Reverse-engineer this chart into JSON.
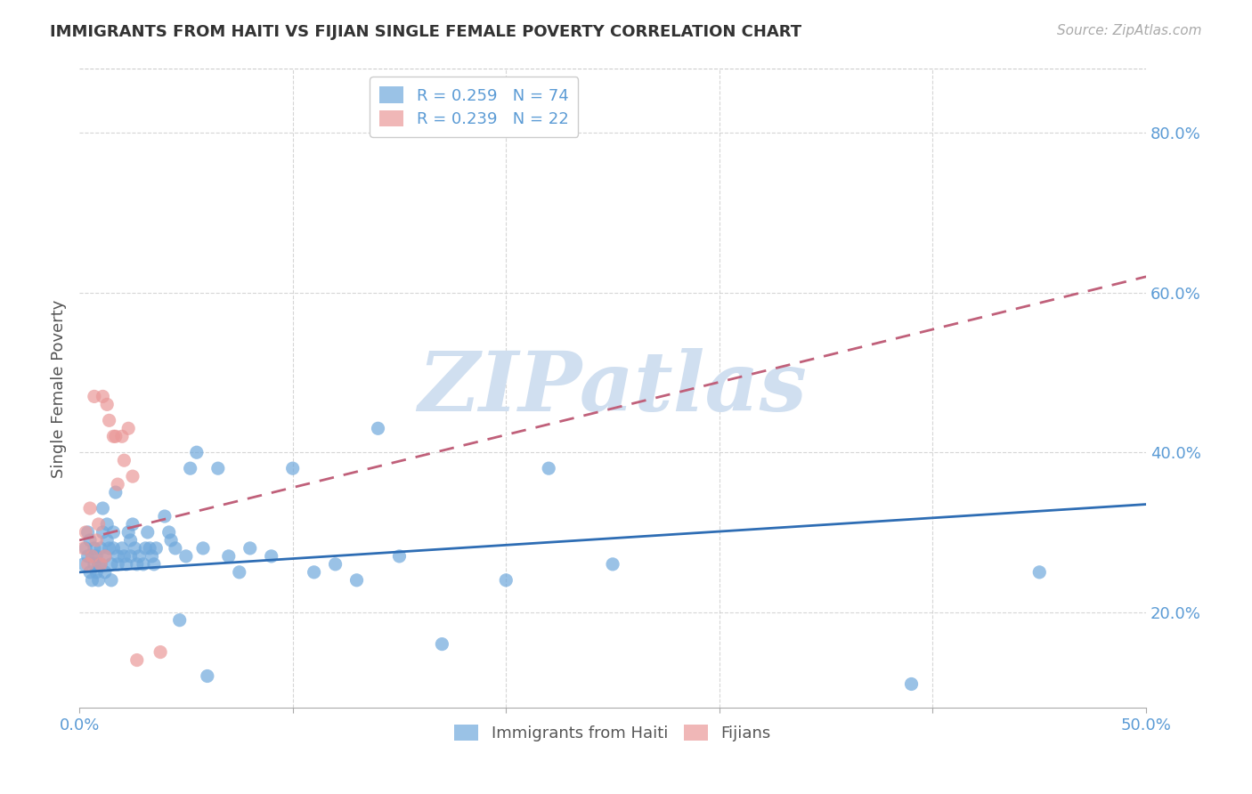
{
  "title": "IMMIGRANTS FROM HAITI VS FIJIAN SINGLE FEMALE POVERTY CORRELATION CHART",
  "source": "Source: ZipAtlas.com",
  "ylabel": "Single Female Poverty",
  "yticks": [
    20.0,
    40.0,
    60.0,
    80.0
  ],
  "xlim": [
    0.0,
    0.5
  ],
  "ylim": [
    0.08,
    0.88
  ],
  "watermark": "ZIPatlas",
  "haiti_R": "0.259",
  "haiti_N": "74",
  "fijian_R": "0.239",
  "fijian_N": "22",
  "haiti_color": "#6fa8dc",
  "fijian_color": "#ea9999",
  "haiti_x": [
    0.002,
    0.003,
    0.004,
    0.004,
    0.005,
    0.005,
    0.006,
    0.006,
    0.007,
    0.007,
    0.008,
    0.008,
    0.009,
    0.009,
    0.01,
    0.01,
    0.011,
    0.011,
    0.012,
    0.012,
    0.013,
    0.013,
    0.014,
    0.015,
    0.015,
    0.016,
    0.016,
    0.017,
    0.018,
    0.018,
    0.02,
    0.021,
    0.022,
    0.023,
    0.024,
    0.024,
    0.025,
    0.026,
    0.027,
    0.028,
    0.03,
    0.031,
    0.032,
    0.033,
    0.034,
    0.035,
    0.036,
    0.04,
    0.042,
    0.043,
    0.045,
    0.047,
    0.05,
    0.052,
    0.055,
    0.058,
    0.06,
    0.065,
    0.07,
    0.075,
    0.08,
    0.09,
    0.1,
    0.11,
    0.12,
    0.13,
    0.14,
    0.15,
    0.17,
    0.2,
    0.22,
    0.25,
    0.39,
    0.45
  ],
  "haiti_y": [
    0.26,
    0.28,
    0.27,
    0.3,
    0.25,
    0.29,
    0.24,
    0.27,
    0.26,
    0.28,
    0.25,
    0.27,
    0.26,
    0.24,
    0.28,
    0.26,
    0.33,
    0.3,
    0.27,
    0.25,
    0.29,
    0.31,
    0.28,
    0.26,
    0.24,
    0.3,
    0.28,
    0.35,
    0.27,
    0.26,
    0.28,
    0.27,
    0.26,
    0.3,
    0.27,
    0.29,
    0.31,
    0.28,
    0.26,
    0.27,
    0.26,
    0.28,
    0.3,
    0.28,
    0.27,
    0.26,
    0.28,
    0.32,
    0.3,
    0.29,
    0.28,
    0.19,
    0.27,
    0.38,
    0.4,
    0.28,
    0.12,
    0.38,
    0.27,
    0.25,
    0.28,
    0.27,
    0.38,
    0.25,
    0.26,
    0.24,
    0.43,
    0.27,
    0.16,
    0.24,
    0.38,
    0.26,
    0.11,
    0.25
  ],
  "fijian_x": [
    0.002,
    0.003,
    0.004,
    0.005,
    0.006,
    0.007,
    0.008,
    0.009,
    0.01,
    0.011,
    0.012,
    0.013,
    0.014,
    0.016,
    0.017,
    0.018,
    0.02,
    0.021,
    0.023,
    0.025,
    0.027,
    0.038
  ],
  "fijian_y": [
    0.28,
    0.3,
    0.26,
    0.33,
    0.27,
    0.47,
    0.29,
    0.31,
    0.26,
    0.47,
    0.27,
    0.46,
    0.44,
    0.42,
    0.42,
    0.36,
    0.42,
    0.39,
    0.43,
    0.37,
    0.14,
    0.15
  ],
  "haiti_trend_x": [
    0.0,
    0.5
  ],
  "haiti_trend_y": [
    0.25,
    0.335
  ],
  "fijian_trend_x": [
    0.0,
    0.5
  ],
  "fijian_trend_y": [
    0.29,
    0.62
  ],
  "title_color": "#333333",
  "axis_color": "#5b9bd5",
  "grid_color": "#cccccc",
  "watermark_color": "#d0dff0",
  "trend_blue": "#2e6db4",
  "trend_pink": "#c0607a"
}
